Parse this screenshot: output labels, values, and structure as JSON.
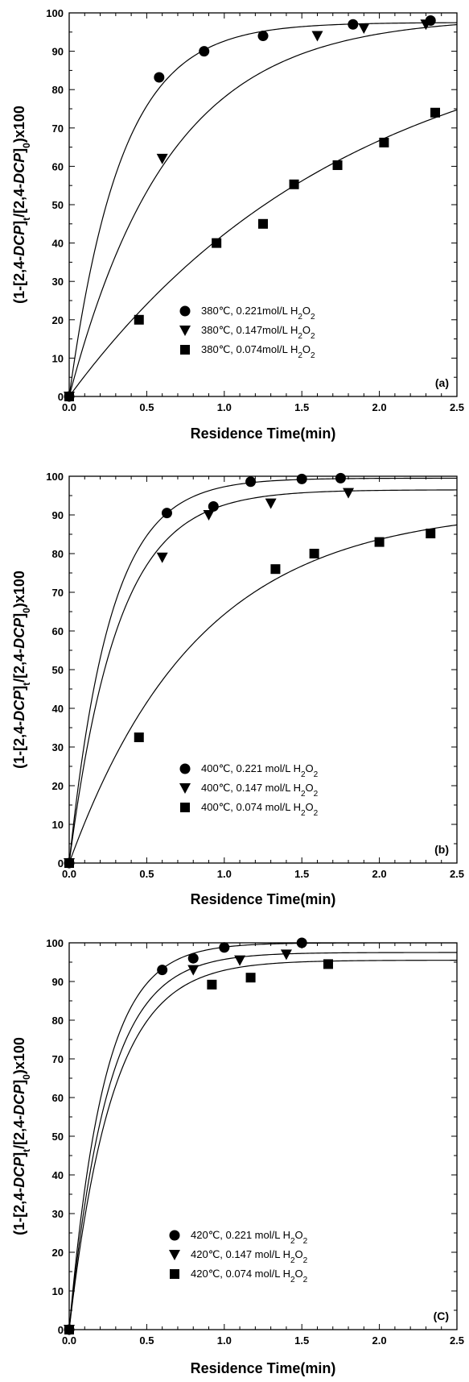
{
  "chart_data": [
    {
      "type": "scatter",
      "panel_label": "(a)",
      "xlabel": "Residence Time(min)",
      "ylabel": {
        "p1": "(1-[2,4-",
        "i1": "DCP",
        "p2": "]",
        "s1": "t",
        "p3": "/[2,4-",
        "i2": "DCP",
        "p4": "]",
        "s2": "0",
        "p5": ")x100"
      },
      "xlim": [
        0,
        2.5
      ],
      "ylim": [
        0,
        100
      ],
      "xticks": [
        "0.0",
        "0.5",
        "1.0",
        "1.5",
        "2.0",
        "2.5"
      ],
      "yticks": [
        "0",
        "10",
        "20",
        "30",
        "40",
        "50",
        "60",
        "70",
        "80",
        "90",
        "100"
      ],
      "legend_position": "lower-center",
      "series": [
        {
          "name": "380℃, 0.221mol/L H2O2",
          "label_main": "380℃, 0.221mol/L H",
          "sub": "2",
          "mid": "O",
          "sub2": "2",
          "marker": "circle",
          "x": [
            0,
            0.58,
            0.87,
            1.25,
            1.83,
            2.33
          ],
          "y": [
            0,
            83.2,
            90,
            94,
            97,
            98
          ],
          "fit": {
            "asym": 97.5,
            "k": 3.0
          }
        },
        {
          "name": "380℃, 0.147mol/L H2O2",
          "label_main": "380℃, 0.147mol/L H",
          "sub": "2",
          "mid": "O",
          "sub2": "2",
          "marker": "triangle-down",
          "x": [
            0,
            0.6,
            1.6,
            1.9,
            2.3
          ],
          "y": [
            0,
            62,
            94,
            96,
            97
          ],
          "fit": {
            "asym": 99,
            "k": 1.55
          }
        },
        {
          "name": "380℃, 0.074mol/L H2O2",
          "label_main": "380℃, 0.074mol/L H",
          "sub": "2",
          "mid": "O",
          "sub2": "2",
          "marker": "square",
          "x": [
            0,
            0.45,
            0.95,
            1.25,
            1.45,
            1.73,
            2.03,
            2.36
          ],
          "y": [
            0,
            20,
            40,
            45,
            55.3,
            60.3,
            66.2,
            74
          ],
          "fit": {
            "asym": 100,
            "k": 0.55
          }
        }
      ]
    },
    {
      "type": "scatter",
      "panel_label": "(b)",
      "xlabel": "Residence Time(min)",
      "ylabel": {
        "p1": "(1-[2,4-",
        "i1": "DCP",
        "p2": "]",
        "s1": "t",
        "p3": "/[2,4-",
        "i2": "DCP",
        "p4": "]",
        "s2": "0",
        "p5": ")x100"
      },
      "xlim": [
        0,
        2.5
      ],
      "ylim": [
        0,
        100
      ],
      "xticks": [
        "0.0",
        "0.5",
        "1.0",
        "1.5",
        "2.0",
        "2.5"
      ],
      "yticks": [
        "0",
        "10",
        "20",
        "30",
        "40",
        "50",
        "60",
        "70",
        "80",
        "90",
        "100"
      ],
      "legend_position": "lower-center",
      "series": [
        {
          "name": "400℃, 0.221 mol/L H2O2",
          "label_main": "400℃, 0.221 mol/L H",
          "sub": "2",
          "mid": "O",
          "sub2": "2",
          "marker": "circle",
          "x": [
            0,
            0.63,
            0.93,
            1.17,
            1.5,
            1.75
          ],
          "y": [
            0,
            90.5,
            92.2,
            98.6,
            99.3,
            99.5
          ],
          "fit": {
            "asym": 99.5,
            "k": 3.8
          }
        },
        {
          "name": "400℃, 0.147 mol/L H2O2",
          "label_main": "400℃, 0.147 mol/L H",
          "sub": "2",
          "mid": "O",
          "sub2": "2",
          "marker": "triangle-down",
          "x": [
            0,
            0.6,
            0.9,
            1.3,
            1.8
          ],
          "y": [
            0,
            79,
            90,
            93,
            95.7
          ],
          "fit": {
            "asym": 96.5,
            "k": 3.2
          }
        },
        {
          "name": "400℃, 0.074 mol/L H2O2",
          "label_main": "400℃, 0.074 mol/L H",
          "sub": "2",
          "mid": "O",
          "sub2": "2",
          "marker": "square",
          "x": [
            0,
            0.45,
            1.33,
            1.58,
            2.0,
            2.33
          ],
          "y": [
            0,
            32.5,
            76,
            80,
            83,
            85.2
          ],
          "fit": {
            "asym": 92,
            "k": 1.2
          }
        }
      ]
    },
    {
      "type": "scatter",
      "panel_label": "(C)",
      "xlabel": "Residence Time(min)",
      "ylabel": {
        "p1": "(1-[2,4-",
        "i1": "DCP",
        "p2": "]",
        "s1": "t",
        "p3": "/[2,4-",
        "i2": "DCP",
        "p4": "]",
        "s2": "0",
        "p5": ")x100"
      },
      "xlim": [
        0,
        2.5
      ],
      "ylim": [
        0,
        100
      ],
      "xticks": [
        "0.0",
        "0.5",
        "1.0",
        "1.5",
        "2.0",
        "2.5"
      ],
      "yticks": [
        "0",
        "10",
        "20",
        "30",
        "40",
        "50",
        "60",
        "70",
        "80",
        "90",
        "100"
      ],
      "legend_position": "lower-center",
      "series": [
        {
          "name": "420℃, 0.221 mol/L H2O2",
          "label_main": "420℃, 0.221 mol/L H",
          "sub": "2",
          "mid": "O",
          "sub2": "2",
          "marker": "circle",
          "x": [
            0,
            0.6,
            0.8,
            1.0,
            1.5
          ],
          "y": [
            0,
            93,
            96,
            98.8,
            100
          ],
          "fit": {
            "asym": 100,
            "k": 4.5
          }
        },
        {
          "name": "420℃, 0.147 mol/L H2O2",
          "label_main": "420℃, 0.147 mol/L H",
          "sub": "2",
          "mid": "O",
          "sub2": "2",
          "marker": "triangle-down",
          "x": [
            0,
            0.8,
            1.1,
            1.4
          ],
          "y": [
            0,
            93,
            95.5,
            97
          ],
          "fit": {
            "asym": 97.5,
            "k": 4.0
          }
        },
        {
          "name": "420℃, 0.074 mol/L H2O2",
          "label_main": "420℃, 0.074 mol/L H",
          "sub": "2",
          "mid": "O",
          "sub2": "2",
          "marker": "square",
          "x": [
            0,
            0.92,
            1.17,
            1.67
          ],
          "y": [
            0,
            89.2,
            91,
            94.5
          ],
          "fit": {
            "asym": 95.5,
            "k": 3.6
          }
        }
      ]
    }
  ]
}
